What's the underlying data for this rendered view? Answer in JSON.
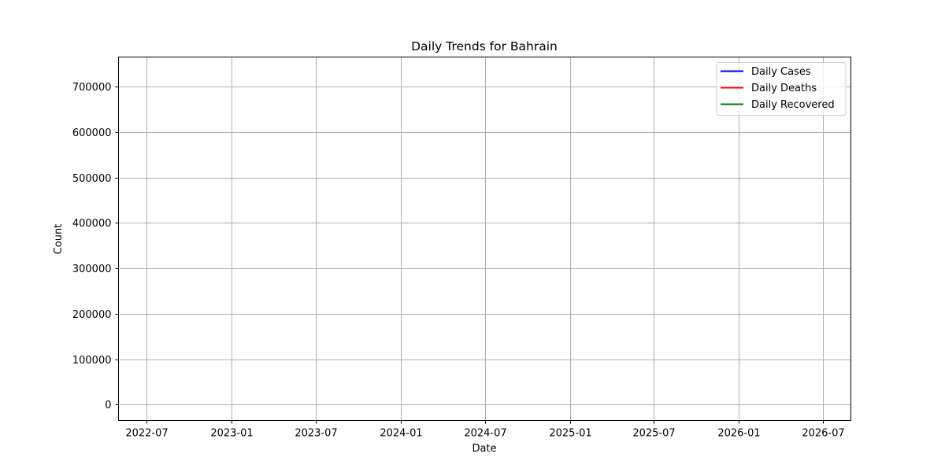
{
  "chart_data": {
    "type": "line",
    "title": "Daily Trends for Bahrain",
    "xlabel": "Date",
    "ylabel": "Count",
    "x_ticks": [
      "2022-07",
      "2023-01",
      "2023-07",
      "2024-01",
      "2024-07",
      "2025-01",
      "2025-07",
      "2026-01",
      "2026-07"
    ],
    "y_ticks": [
      "0",
      "100000",
      "200000",
      "300000",
      "400000",
      "500000",
      "600000",
      "700000"
    ],
    "xlim": [
      "2022-05-01",
      "2026-08-31"
    ],
    "ylim": [
      -35000,
      765000
    ],
    "grid": true,
    "legend_position": "top-right",
    "series": [
      {
        "name": "Daily Cases",
        "color": "#0000ff",
        "values": []
      },
      {
        "name": "Daily Deaths",
        "color": "#ff0000",
        "values": []
      },
      {
        "name": "Daily Recovered",
        "color": "#008000",
        "values": []
      }
    ]
  }
}
